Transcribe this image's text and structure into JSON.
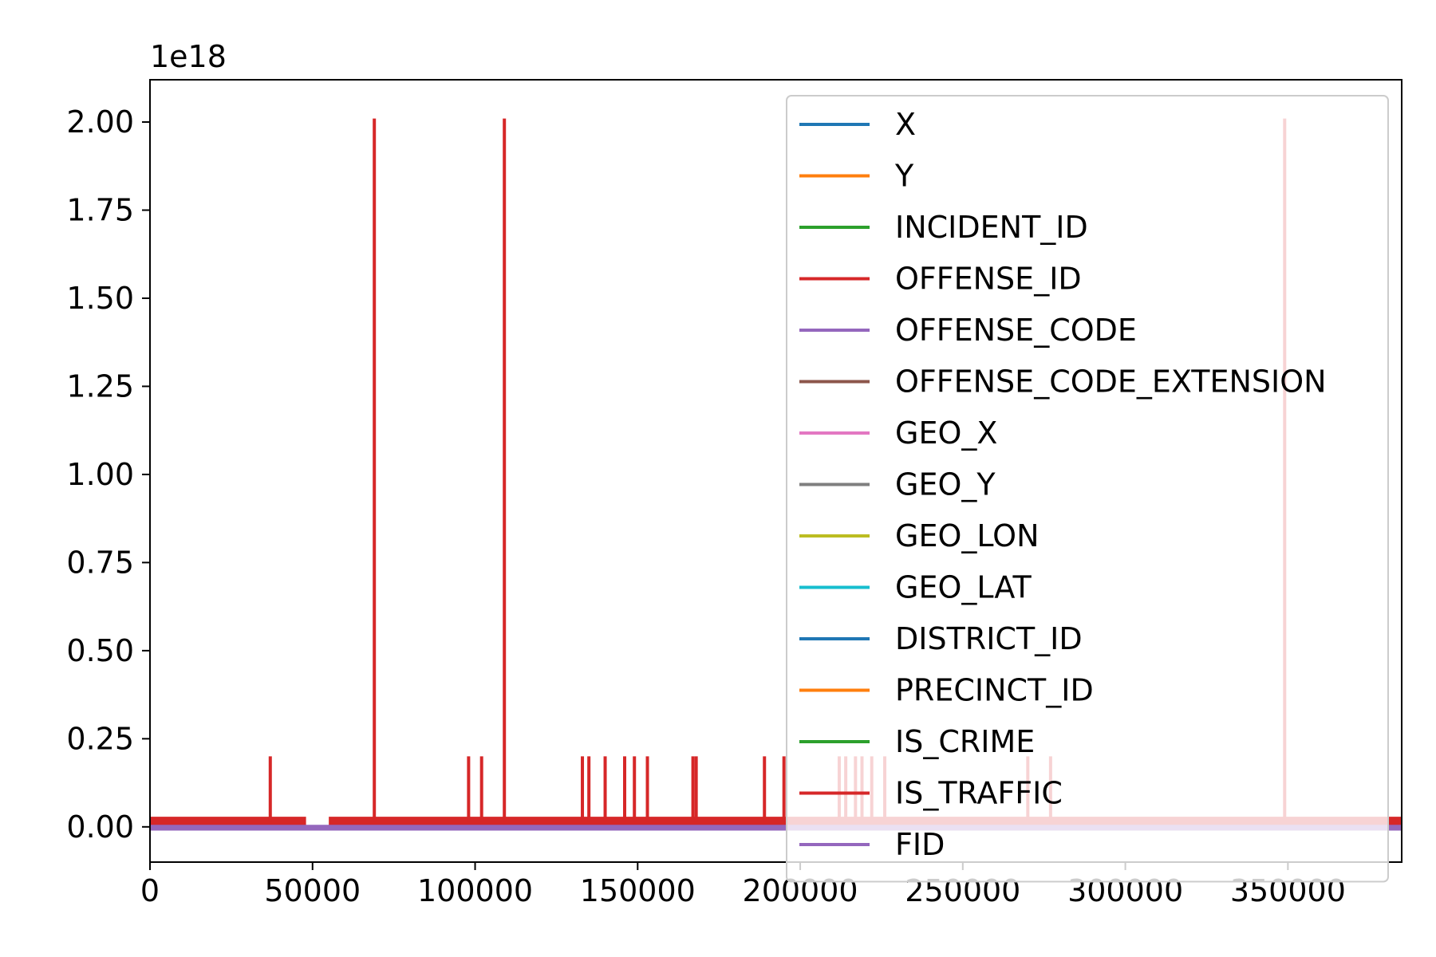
{
  "chart_data": {
    "type": "line",
    "offset_label": "1e18",
    "xlim": [
      0,
      385000
    ],
    "ylim": [
      -0.1,
      2.12
    ],
    "x_ticks": [
      0,
      50000,
      100000,
      150000,
      200000,
      250000,
      300000,
      350000
    ],
    "x_tick_labels": [
      "0",
      "50000",
      "100000",
      "150000",
      "200000",
      "250000",
      "300000",
      "350000"
    ],
    "y_ticks": [
      0.0,
      0.25,
      0.5,
      0.75,
      1.0,
      1.25,
      1.5,
      1.75,
      2.0
    ],
    "y_tick_labels": [
      "0.00",
      "0.25",
      "0.50",
      "0.75",
      "1.00",
      "1.25",
      "1.50",
      "1.75",
      "2.00"
    ],
    "legend_position": "upper right",
    "grid": false,
    "series": [
      {
        "name": "X",
        "color": "#1f77b4"
      },
      {
        "name": "Y",
        "color": "#ff7f0e"
      },
      {
        "name": "INCIDENT_ID",
        "color": "#2ca02c"
      },
      {
        "name": "OFFENSE_ID",
        "color": "#d62728",
        "baseline": 0.015,
        "tall_spikes": [
          [
            69000,
            2.01
          ],
          [
            109000,
            2.01
          ],
          [
            349000,
            2.01
          ]
        ],
        "small_spikes": [
          [
            37000,
            0.2
          ],
          [
            98000,
            0.2
          ],
          [
            102000,
            0.2
          ],
          [
            133000,
            0.2
          ],
          [
            135000,
            0.2
          ],
          [
            140000,
            0.2
          ],
          [
            146000,
            0.2
          ],
          [
            149000,
            0.2
          ],
          [
            153000,
            0.2
          ],
          [
            167000,
            0.2
          ],
          [
            168000,
            0.2
          ],
          [
            189000,
            0.2
          ],
          [
            195000,
            0.2
          ],
          [
            212000,
            0.2
          ],
          [
            214000,
            0.2
          ],
          [
            217000,
            0.2
          ],
          [
            219000,
            0.2
          ],
          [
            222000,
            0.2
          ],
          [
            226000,
            0.2
          ],
          [
            270000,
            0.2
          ],
          [
            277000,
            0.2
          ]
        ],
        "gaps": [
          [
            48000,
            55000
          ]
        ]
      },
      {
        "name": "OFFENSE_CODE",
        "color": "#9467bd",
        "baseline": 0.0
      },
      {
        "name": "OFFENSE_CODE_EXTENSION",
        "color": "#8c564b"
      },
      {
        "name": "GEO_X",
        "color": "#e377c2"
      },
      {
        "name": "GEO_Y",
        "color": "#7f7f7f"
      },
      {
        "name": "GEO_LON",
        "color": "#bcbd22"
      },
      {
        "name": "GEO_LAT",
        "color": "#17becf"
      },
      {
        "name": "DISTRICT_ID",
        "color": "#1f77b4"
      },
      {
        "name": "PRECINCT_ID",
        "color": "#ff7f0e"
      },
      {
        "name": "IS_CRIME",
        "color": "#2ca02c"
      },
      {
        "name": "IS_TRAFFIC",
        "color": "#d62728"
      },
      {
        "name": "FID",
        "color": "#9467bd",
        "baseline": -0.005
      }
    ]
  }
}
